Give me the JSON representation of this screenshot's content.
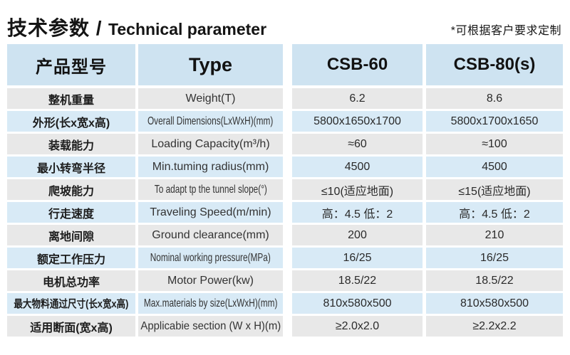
{
  "title": {
    "cn": "技术参数 /",
    "en": "Technical parameter"
  },
  "note": "*可根据客户要求定制",
  "colors": {
    "header_bg": "#cee3f1",
    "row_blue": "#d8eaf6",
    "row_gray": "#e8e8e8",
    "text": "#1f1f1f"
  },
  "table": {
    "header": {
      "label_cn": "产品型号",
      "label_en": "Type",
      "col1": "CSB-60",
      "col2": "CSB-80(s)"
    },
    "rows": [
      {
        "label_cn": "整机重量",
        "label_en": "Weight(T)",
        "csb60": "6.2",
        "csb80": "8.6"
      },
      {
        "label_cn": "外形(长x宽x高)",
        "label_en": "Overall Dimensions(LxWxH)(mm)",
        "csb60": "5800x1650x1700",
        "csb80": "5800x1700x1650"
      },
      {
        "label_cn": "装载能力",
        "label_en": "Loading Capacity(m³/h)",
        "csb60": "≈60",
        "csb80": "≈100"
      },
      {
        "label_cn": "最小转弯半径",
        "label_en": "Min.tuming radius(mm)",
        "csb60": "4500",
        "csb80": "4500"
      },
      {
        "label_cn": "爬坡能力",
        "label_en": "To adapt tp the tunnel slope(°)",
        "csb60": "≤10(适应地面)",
        "csb80": "≤15(适应地面)"
      },
      {
        "label_cn": "行走速度",
        "label_en": "Traveling Speed(m/min)",
        "csb60": "高：4.5 低：2",
        "csb80": "高：4.5 低：2"
      },
      {
        "label_cn": "离地间隙",
        "label_en": "Ground clearance(mm)",
        "csb60": "200",
        "csb80": "210"
      },
      {
        "label_cn": "额定工作压力",
        "label_en": "Nominal working pressure(MPa)",
        "csb60": "16/25",
        "csb80": "16/25"
      },
      {
        "label_cn": "电机总功率",
        "label_en": "Motor Power(kw)",
        "csb60": "18.5/22",
        "csb80": "18.5/22"
      },
      {
        "label_cn": "最大物料通过尺寸(长x宽x高)",
        "label_en": "Max.materials by size(LxWxH)(mm)",
        "csb60": "810x580x500",
        "csb80": "810x580x500"
      },
      {
        "label_cn": "适用断面(宽x高)",
        "label_en": "Applicabie section (W x H)(m)",
        "csb60": "≥2.0x2.0",
        "csb80": "≥2.2x2.2"
      }
    ]
  }
}
